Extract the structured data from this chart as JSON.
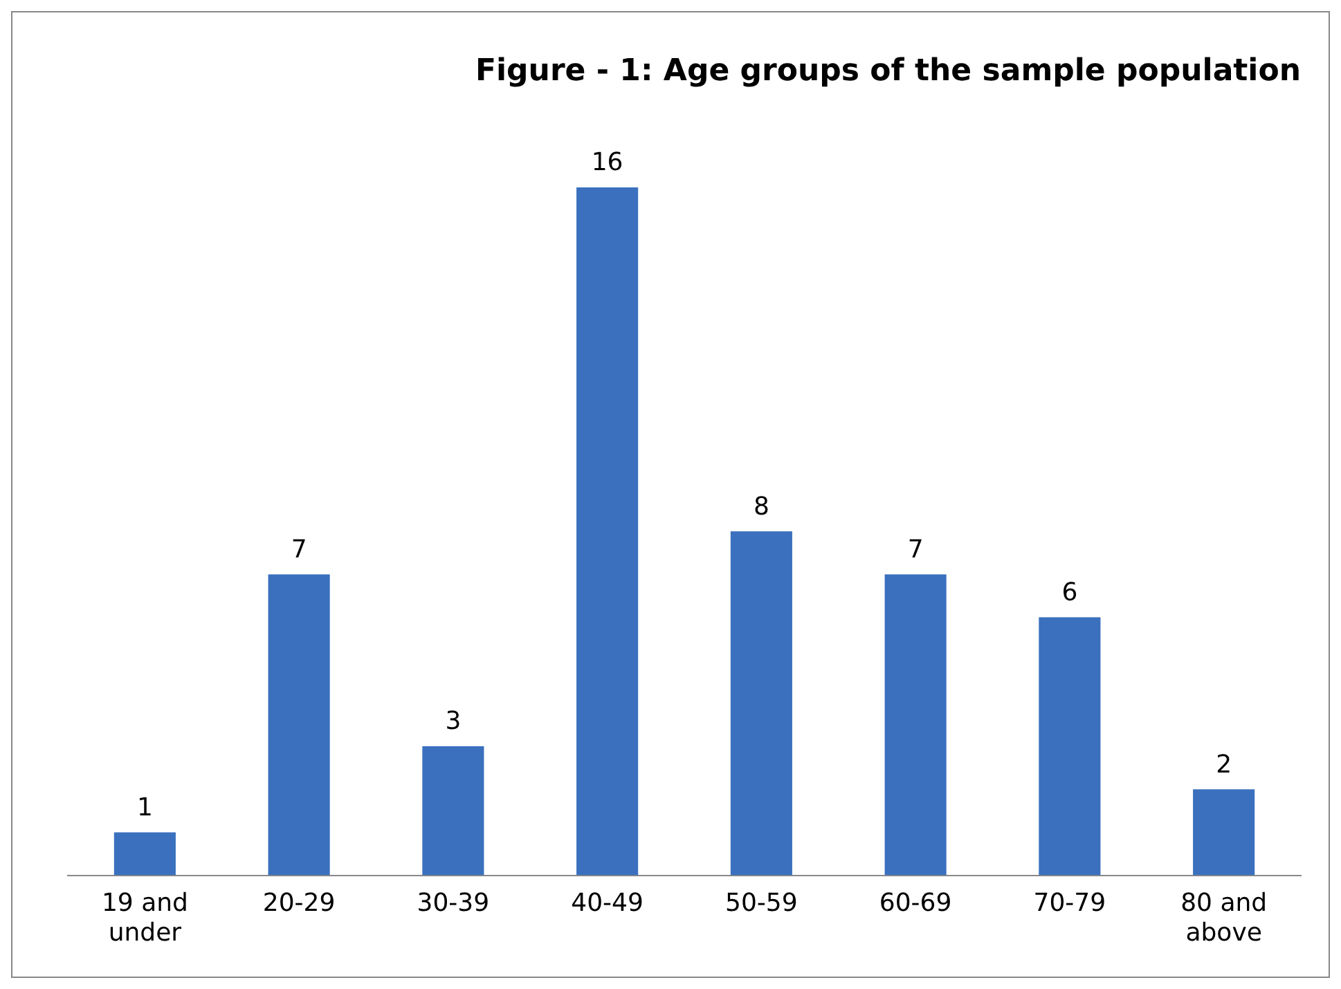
{
  "chart_data": {
    "type": "bar",
    "title": "Figure - 1: Age groups of the sample population",
    "categories": [
      "19 and under",
      "20-29",
      "30-39",
      "40-49",
      "50-59",
      "60-69",
      "70-79",
      "80 and above"
    ],
    "values": [
      1,
      7,
      3,
      16,
      8,
      7,
      6,
      2
    ],
    "color": "#3a70be",
    "data_labels": true,
    "grid": false,
    "legend": false
  }
}
